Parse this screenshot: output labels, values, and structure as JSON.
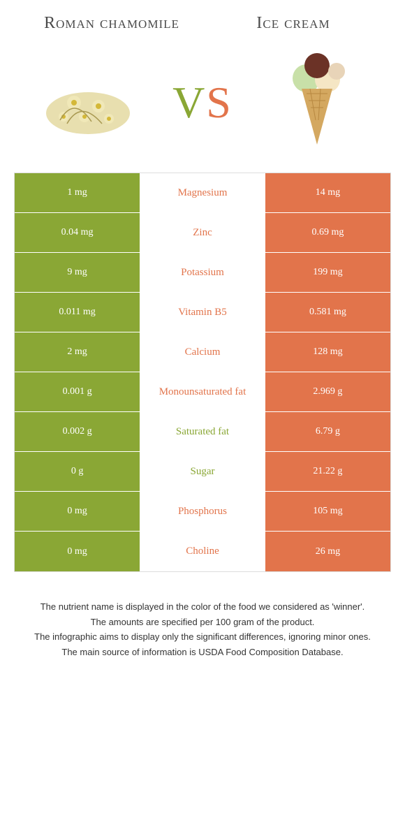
{
  "header": {
    "left_title": "Roman chamomile",
    "right_title": "Ice cream"
  },
  "vs": {
    "v": "V",
    "s": "S"
  },
  "colors": {
    "left": "#8aa735",
    "right": "#e2744b",
    "bg": "#ffffff"
  },
  "nutrients": [
    {
      "name": "Magnesium",
      "left": "1 mg",
      "right": "14 mg",
      "winner": "right"
    },
    {
      "name": "Zinc",
      "left": "0.04 mg",
      "right": "0.69 mg",
      "winner": "right"
    },
    {
      "name": "Potassium",
      "left": "9 mg",
      "right": "199 mg",
      "winner": "right"
    },
    {
      "name": "Vitamin B5",
      "left": "0.011 mg",
      "right": "0.581 mg",
      "winner": "right"
    },
    {
      "name": "Calcium",
      "left": "2 mg",
      "right": "128 mg",
      "winner": "right"
    },
    {
      "name": "Monounsaturated fat",
      "left": "0.001 g",
      "right": "2.969 g",
      "winner": "right"
    },
    {
      "name": "Saturated fat",
      "left": "0.002 g",
      "right": "6.79 g",
      "winner": "left"
    },
    {
      "name": "Sugar",
      "left": "0 g",
      "right": "21.22 g",
      "winner": "left"
    },
    {
      "name": "Phosphorus",
      "left": "0 mg",
      "right": "105 mg",
      "winner": "right"
    },
    {
      "name": "Choline",
      "left": "0 mg",
      "right": "26 mg",
      "winner": "right"
    }
  ],
  "footnotes": [
    "The nutrient name is displayed in the color of the food we considered as 'winner'.",
    "The amounts are specified per 100 gram of the product.",
    "The infographic aims to display only the significant differences, ignoring minor ones.",
    "The main source of information is USDA Food Composition Database."
  ]
}
